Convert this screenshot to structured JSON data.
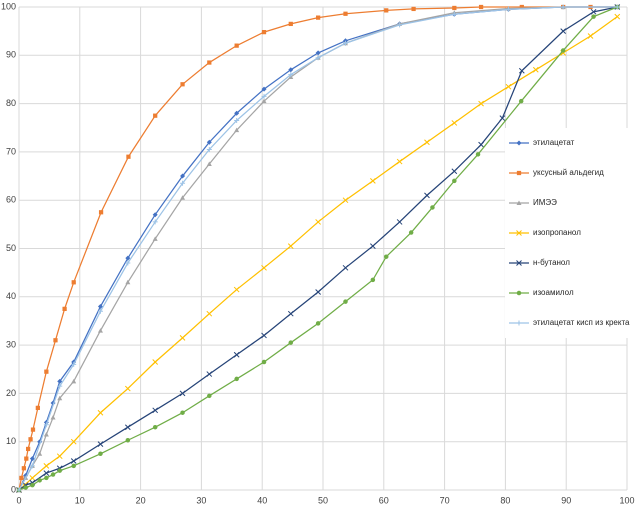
{
  "chart_data": {
    "type": "line",
    "xlim": [
      0,
      100
    ],
    "ylim": [
      0,
      100
    ],
    "xticks": [
      0,
      10,
      20,
      30,
      40,
      50,
      60,
      70,
      80,
      90,
      100
    ],
    "yticks": [
      0,
      10,
      20,
      30,
      40,
      50,
      60,
      70,
      80,
      90,
      100
    ],
    "grid": true,
    "legend": "right",
    "series": [
      {
        "name": "этилацетат",
        "color": "#4472c4",
        "marker": "diamond",
        "x": [
          0,
          1.1,
          2.2,
          3.4,
          4.5,
          5.6,
          6.7,
          9,
          13.4,
          17.9,
          22.4,
          26.9,
          31.3,
          35.8,
          40.3,
          44.7,
          49.2,
          53.7,
          62.6,
          71.6,
          80.5,
          89.5,
          98.4
        ],
        "values": [
          0,
          3,
          6.5,
          10,
          14,
          18,
          22.5,
          26.5,
          38,
          48,
          57,
          65,
          72,
          78,
          83,
          87,
          90.5,
          93,
          96.5,
          98.5,
          99.5,
          100,
          100
        ]
      },
      {
        "name": "уксусный альдегид",
        "color": "#ed7d31",
        "marker": "square",
        "x": [
          0,
          0.4,
          0.8,
          1.2,
          1.5,
          1.9,
          2.3,
          3.1,
          4.5,
          6,
          7.5,
          9,
          13.5,
          18,
          22.4,
          26.9,
          31.3,
          35.8,
          40.3,
          44.7,
          49.2,
          53.7,
          60.4,
          64.9,
          71.6,
          76,
          82.7,
          89.5,
          94,
          98.4
        ],
        "values": [
          0,
          2.5,
          4.5,
          6.5,
          8.5,
          10.5,
          12.5,
          17,
          24.5,
          31,
          37.5,
          43,
          57.5,
          69,
          77.5,
          84,
          88.5,
          92,
          94.8,
          96.5,
          97.8,
          98.6,
          99.3,
          99.6,
          99.8,
          100,
          100,
          100,
          100,
          100
        ]
      },
      {
        "name": "ИМЭЭ",
        "color": "#a5a5a5",
        "marker": "triangle",
        "x": [
          0,
          1.1,
          2.2,
          3.4,
          4.5,
          5.6,
          6.7,
          9,
          13.4,
          17.9,
          22.4,
          26.9,
          31.3,
          35.8,
          40.3,
          44.7,
          49.2,
          53.7,
          62.6,
          71.6,
          80.5,
          89.5,
          98.4
        ],
        "values": [
          0,
          2.5,
          5,
          7.5,
          11.5,
          15,
          19,
          22.5,
          33,
          43,
          52,
          60.5,
          67.5,
          74.5,
          80.5,
          85.5,
          89.5,
          92.5,
          96.5,
          98.8,
          99.7,
          100,
          100
        ]
      },
      {
        "name": "изопропанол",
        "color": "#ffc000",
        "marker": "x",
        "x": [
          0,
          0.9,
          2.2,
          4.5,
          6.7,
          9,
          13.4,
          17.9,
          22.4,
          26.9,
          31.3,
          35.8,
          40.3,
          44.7,
          49.2,
          53.7,
          58.2,
          62.6,
          67.1,
          71.6,
          76,
          80.5,
          85,
          89.5,
          94,
          98.4
        ],
        "values": [
          0,
          1,
          2.5,
          5,
          7,
          10,
          16,
          21,
          26.5,
          31.5,
          36.5,
          41.5,
          46,
          50.5,
          55.5,
          60,
          64,
          68,
          72,
          76,
          80,
          83.5,
          87,
          90.5,
          94,
          98
        ]
      },
      {
        "name": "н-бутанол",
        "color": "#264478",
        "marker": "x",
        "x": [
          0,
          1.1,
          2.2,
          4.5,
          6.7,
          9,
          13.4,
          17.9,
          22.4,
          26.9,
          31.3,
          35.8,
          40.3,
          44.7,
          49.2,
          53.7,
          58.2,
          62.6,
          67.1,
          71.6,
          76,
          79.5,
          82.7,
          89.5,
          94.5,
          98.4
        ],
        "values": [
          0,
          1,
          1.5,
          3.5,
          4.5,
          6,
          9.5,
          13,
          16.5,
          20,
          24,
          28,
          32,
          36.5,
          41,
          46,
          50.5,
          55.5,
          61,
          66,
          71.5,
          77,
          86.8,
          95,
          99,
          100
        ]
      },
      {
        "name": "изоамилол",
        "color": "#70ad47",
        "marker": "circle",
        "x": [
          0,
          1.1,
          2.2,
          3.4,
          4.5,
          5.6,
          6.7,
          9,
          13.4,
          17.9,
          22.4,
          26.9,
          31.3,
          35.8,
          40.3,
          44.7,
          49.2,
          53.7,
          58.2,
          60.4,
          64.5,
          68,
          71.6,
          75.5,
          82.6,
          89.5,
          94.5,
          98.4
        ],
        "values": [
          0,
          0.5,
          1,
          2,
          2.5,
          3.2,
          4,
          5,
          7.5,
          10.3,
          13,
          16,
          19.5,
          23,
          26.5,
          30.5,
          34.5,
          39,
          43.5,
          48.3,
          53.3,
          58.5,
          64,
          69.5,
          80.5,
          91,
          98,
          100
        ]
      },
      {
        "name": "этилацетат кисп из кректа",
        "color": "#9dc3e6",
        "marker": "plus",
        "x": [
          0,
          2.2,
          4.5,
          6.7,
          9,
          13.4,
          17.9,
          22.4,
          26.9,
          31.3,
          35.8,
          40.3,
          44.7,
          49.2,
          53.7,
          62.6,
          71.6,
          80.5,
          89.5,
          98.4
        ],
        "values": [
          0,
          5,
          13.5,
          21.5,
          26,
          37,
          47,
          55.5,
          63.5,
          70.5,
          76.5,
          81.5,
          86,
          89.5,
          92.5,
          96.3,
          98.5,
          99.5,
          100,
          100
        ]
      }
    ]
  }
}
